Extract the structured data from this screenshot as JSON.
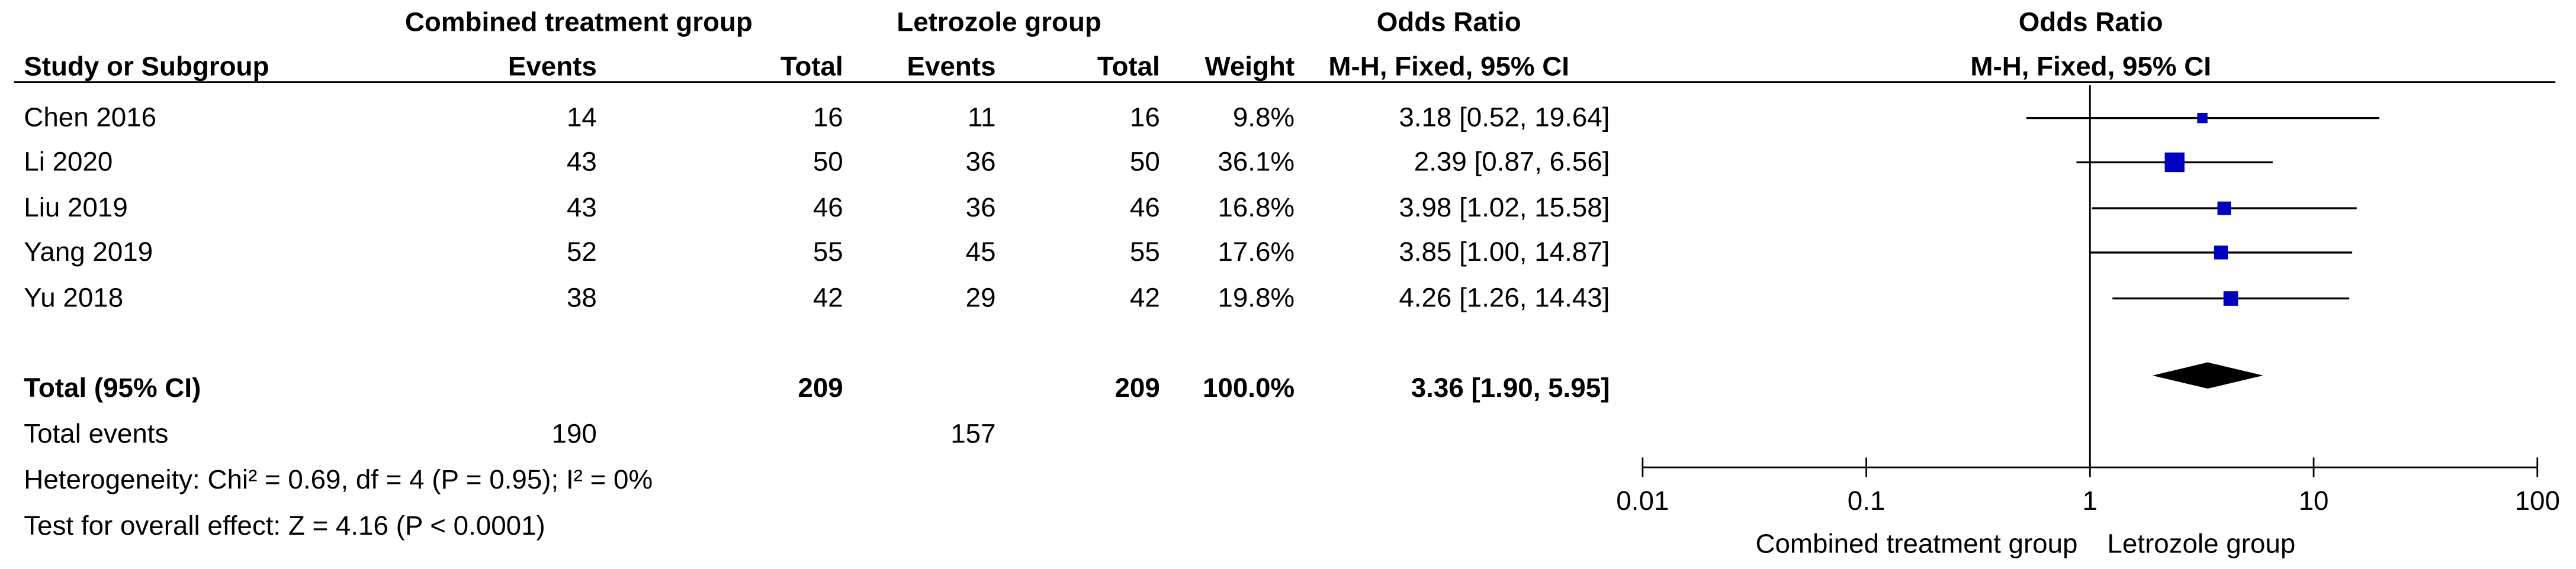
{
  "chart_data": {
    "type": "forest",
    "group_headers": [
      "Combined treatment group",
      "Letrozole group",
      "Odds Ratio"
    ],
    "column_headers": [
      "Study or Subgroup",
      "Events",
      "Total",
      "Events",
      "Total",
      "Weight",
      "M-H, Fixed, 95% CI"
    ],
    "plot_headers": [
      "Odds Ratio",
      "M-H, Fixed, 95% CI"
    ],
    "studies": [
      {
        "name": "Chen 2016",
        "events1": 14,
        "total1": 16,
        "events2": 11,
        "total2": 16,
        "weight": 9.8,
        "weight_label": "9.8%",
        "or": 3.18,
        "ci": [
          0.52,
          19.64
        ],
        "ci_label": "3.18 [0.52, 19.64]"
      },
      {
        "name": "Li 2020",
        "events1": 43,
        "total1": 50,
        "events2": 36,
        "total2": 50,
        "weight": 36.1,
        "weight_label": "36.1%",
        "or": 2.39,
        "ci": [
          0.87,
          6.56
        ],
        "ci_label": "2.39 [0.87, 6.56]"
      },
      {
        "name": "Liu 2019",
        "events1": 43,
        "total1": 46,
        "events2": 36,
        "total2": 46,
        "weight": 16.8,
        "weight_label": "16.8%",
        "or": 3.98,
        "ci": [
          1.02,
          15.58
        ],
        "ci_label": "3.98 [1.02, 15.58]"
      },
      {
        "name": "Yang 2019",
        "events1": 52,
        "total1": 55,
        "events2": 45,
        "total2": 55,
        "weight": 17.6,
        "weight_label": "17.6%",
        "or": 3.85,
        "ci": [
          1.0,
          14.87
        ],
        "ci_label": "3.85 [1.00, 14.87]"
      },
      {
        "name": "Yu 2018",
        "events1": 38,
        "total1": 42,
        "events2": 29,
        "total2": 42,
        "weight": 19.8,
        "weight_label": "19.8%",
        "or": 4.26,
        "ci": [
          1.26,
          14.43
        ],
        "ci_label": "4.26 [1.26, 14.43]"
      }
    ],
    "total": {
      "name": "Total (95% CI)",
      "total1": 209,
      "total2": 209,
      "weight": 100.0,
      "weight_label": "100.0%",
      "or": 3.36,
      "ci": [
        1.9,
        5.95
      ],
      "ci_label": "3.36 [1.90, 5.95]"
    },
    "total_events": {
      "name": "Total events",
      "events1": 190,
      "events2": 157
    },
    "heterogeneity": "Heterogeneity: Chi² = 0.69, df = 4 (P = 0.95); I² = 0%",
    "overall_effect": "Test for overall effect: Z = 4.16 (P < 0.0001)",
    "xscale": "log",
    "xlim": [
      0.01,
      100
    ],
    "xticks": [
      0.01,
      0.1,
      1,
      10,
      100
    ],
    "x_labels": [
      "Combined treatment group",
      "Letrozole group"
    ],
    "color": "#0000c0",
    "summary_color": "#000000"
  }
}
